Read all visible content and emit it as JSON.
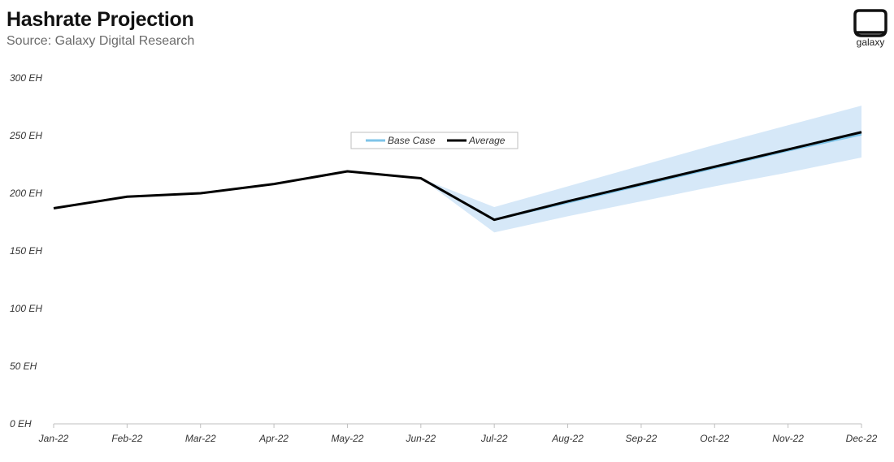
{
  "header": {
    "title": "Hashrate Projection",
    "subtitle": "Source: Galaxy Digital Research",
    "logo_text": "galaxy"
  },
  "chart_data": {
    "type": "line",
    "categories": [
      "Jan-22",
      "Feb-22",
      "Mar-22",
      "Apr-22",
      "May-22",
      "Jun-22",
      "Jul-22",
      "Aug-22",
      "Sep-22",
      "Oct-22",
      "Nov-22",
      "Dec-22"
    ],
    "y_ticks": [
      "0 EH",
      "50 EH",
      "100 EH",
      "150 EH",
      "200 EH",
      "250 EH",
      "300 EH"
    ],
    "ylim": [
      0,
      300
    ],
    "y_step": 50,
    "y_unit": " EH",
    "grid": false,
    "legend_position": "top-center",
    "series": [
      {
        "name": "Base Case",
        "color": "#7fc4e8",
        "values": [
          null,
          null,
          null,
          null,
          null,
          213,
          177,
          192,
          207,
          222,
          237,
          251
        ]
      },
      {
        "name": "Average",
        "color": "#000000",
        "values": [
          187,
          197,
          200,
          208,
          219,
          213,
          177,
          193,
          208,
          223,
          238,
          253
        ]
      }
    ],
    "band": {
      "color": "#d6e8f8",
      "upper": [
        null,
        null,
        null,
        null,
        null,
        213,
        188,
        206,
        224,
        242,
        259,
        276
      ],
      "lower": [
        null,
        null,
        null,
        null,
        null,
        213,
        166,
        180,
        193,
        206,
        218,
        231
      ]
    }
  }
}
